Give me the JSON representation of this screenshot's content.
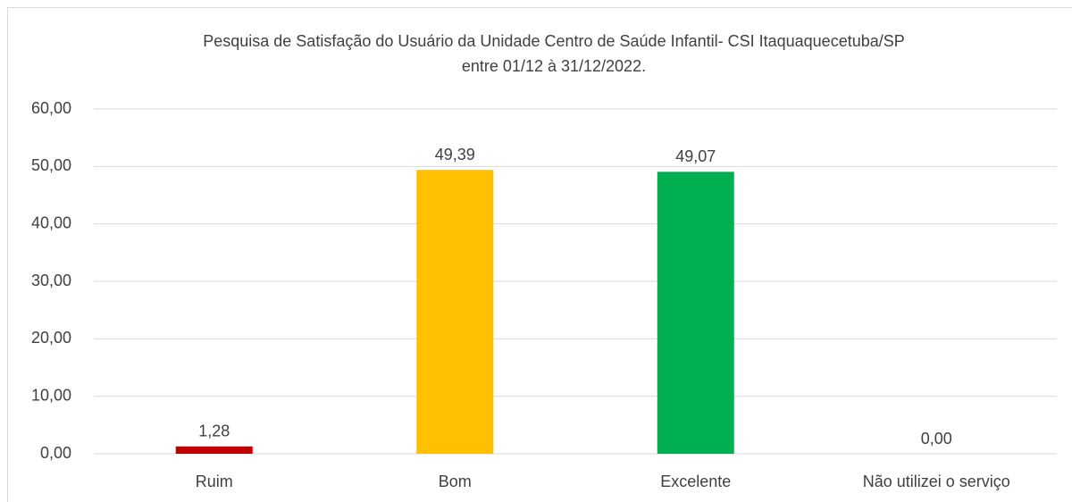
{
  "chart_data": {
    "type": "bar",
    "title": [
      "Pesquisa de Satisfação do Usuário da Unidade Centro de Saúde Infantil- CSI  Itaquaquecetuba/SP",
      "entre 01/12 à 31/12/2022."
    ],
    "categories": [
      "Ruim",
      "Bom",
      "Excelente",
      "Não utilizei o serviço"
    ],
    "values": [
      1.28,
      49.39,
      49.07,
      0
    ],
    "value_labels": [
      "1,28",
      "49,39",
      "49,07",
      "0,00"
    ],
    "colors": [
      "#c00000",
      "#ffc000",
      "#00b050",
      "#5b9bd5"
    ],
    "ylim": [
      0,
      60
    ],
    "yticks": [
      {
        "value": 0,
        "label": "0,00"
      },
      {
        "value": 10,
        "label": "10,00"
      },
      {
        "value": 20,
        "label": "20,00"
      },
      {
        "value": 30,
        "label": "30,00"
      },
      {
        "value": 40,
        "label": "40,00"
      },
      {
        "value": 50,
        "label": "50,00"
      },
      {
        "value": 60,
        "label": "60,00"
      }
    ],
    "grid": true
  }
}
